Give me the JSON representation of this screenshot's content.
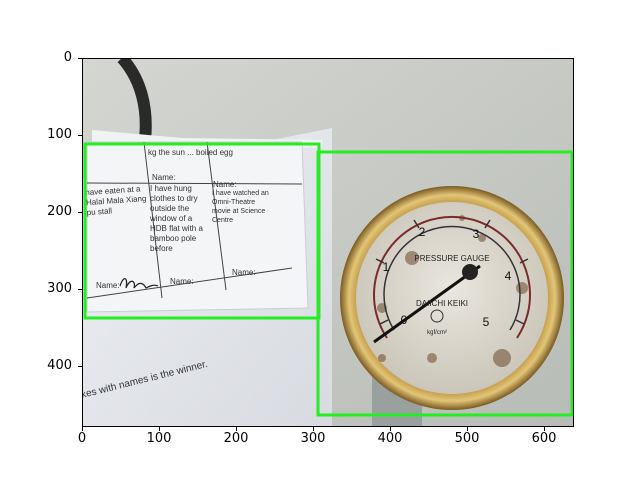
{
  "axes": {
    "x_ticks": [
      "0",
      "100",
      "200",
      "300",
      "400",
      "500",
      "600"
    ],
    "y_ticks": [
      "0",
      "100",
      "200",
      "300",
      "400"
    ]
  },
  "detection_box_color": "#22ee22",
  "paper": {
    "cells": [
      [
        "kg the sun ... boiled egg",
        "",
        ""
      ],
      [
        "have eaten at a Halal Mala Xiang pu stall",
        "I have hung clothes to dry outside the window of a HDB flat with a bamboo pole before",
        "I have watched an Omni-Theatre movie at Science Centre"
      ]
    ],
    "name_label": "Name:",
    "bottom_text": "kes with names is the winner."
  },
  "gauge": {
    "title": "PRESSURE GAUGE",
    "brand": "DAIICHI KEIKI",
    "scale": [
      "0",
      "1",
      "2",
      "3",
      "4",
      "5"
    ],
    "unit": "kgf/cm²"
  }
}
